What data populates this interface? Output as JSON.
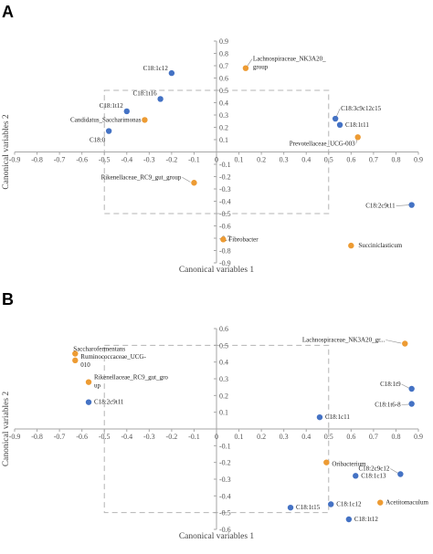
{
  "colors": {
    "blue": "#4472C4",
    "orange": "#ED9B33",
    "axis": "#A6A6A6",
    "box": "#B4B4B4",
    "leader": "#8C8C8C"
  },
  "chart_data": [
    {
      "panel": "A",
      "type": "scatter",
      "xlabel": "Canonical variables 1",
      "ylabel": "Canonical variables 2",
      "xlim": [
        -0.9,
        0.9
      ],
      "ylim": [
        -0.9,
        0.9
      ],
      "xticks": [
        -0.9,
        -0.8,
        -0.7,
        -0.6,
        -0.5,
        -0.4,
        -0.3,
        -0.2,
        -0.1,
        0,
        0.1,
        0.2,
        0.3,
        0.4,
        0.5,
        0.6,
        0.7,
        0.8,
        0.9
      ],
      "yticks": [
        0.9,
        0.8,
        0.7,
        0.6,
        0.5,
        0.4,
        0.3,
        0.2,
        0.1,
        -0.1,
        -0.2,
        -0.3,
        -0.4,
        -0.5,
        -0.6,
        -0.7,
        -0.8,
        -0.9
      ],
      "xtick_labels": [
        "-0.9",
        "-0.8",
        "-0.7",
        "-0.6",
        "-0.5",
        "-0.4",
        "-0.3",
        "-0.2",
        "-0.1",
        "0",
        "0.1",
        "0.2",
        "0.3",
        "0.4",
        "0.5",
        "0.6",
        "0.7",
        "0.8",
        "0.9"
      ],
      "ytick_labels": [
        "0.9",
        "0.8",
        "0.7",
        "0.6",
        "0.5",
        "0.4",
        "0.3",
        "0.2",
        "0.1",
        "-0.1",
        "-0.2",
        "-0.3",
        "-0.4",
        "-0.5",
        "-0.6",
        "-0.7",
        "-0.8",
        "-0.9"
      ],
      "box": {
        "x": [
          -0.5,
          0.5
        ],
        "y": [
          -0.5,
          0.5
        ]
      },
      "points": [
        {
          "label": [
            "C18:1c12"
          ],
          "x": -0.2,
          "y": 0.64,
          "series": "fatty_acid"
        },
        {
          "label": [
            "Lachnospiraceae_NK3A20_",
            "group"
          ],
          "x": 0.13,
          "y": 0.68,
          "series": "bacteria"
        },
        {
          "label": [
            "C18:1t16"
          ],
          "x": -0.25,
          "y": 0.43,
          "series": "fatty_acid"
        },
        {
          "label": [
            "C18:1t12"
          ],
          "x": -0.4,
          "y": 0.33,
          "series": "fatty_acid"
        },
        {
          "label": [
            "Candidatus_Saccharimonas"
          ],
          "x": -0.32,
          "y": 0.26,
          "series": "bacteria"
        },
        {
          "label": [
            "C18:0"
          ],
          "x": -0.48,
          "y": 0.17,
          "series": "fatty_acid"
        },
        {
          "label": [
            "C18:3c9c12c15"
          ],
          "x": 0.53,
          "y": 0.27,
          "series": "fatty_acid"
        },
        {
          "label": [
            "C18:1t11"
          ],
          "x": 0.55,
          "y": 0.22,
          "series": "fatty_acid"
        },
        {
          "label": [
            "Prevotellaceae_UCG-003"
          ],
          "x": 0.63,
          "y": 0.12,
          "series": "bacteria"
        },
        {
          "label": [
            "Rikenellaceae_RC9_gut_group"
          ],
          "x": -0.1,
          "y": -0.25,
          "series": "bacteria"
        },
        {
          "label": [
            "C18:2c9t11"
          ],
          "x": 0.87,
          "y": -0.43,
          "series": "fatty_acid"
        },
        {
          "label": [
            "Fibrobacter"
          ],
          "x": 0.03,
          "y": -0.71,
          "series": "bacteria"
        },
        {
          "label": [
            "Succiniclasticum"
          ],
          "x": 0.6,
          "y": -0.76,
          "series": "bacteria"
        }
      ]
    },
    {
      "panel": "B",
      "type": "scatter",
      "xlabel": "Canonical variables 1",
      "ylabel": "Canonical variables 2",
      "xlim": [
        -0.9,
        0.9
      ],
      "ylim": [
        -0.6,
        0.6
      ],
      "xticks": [
        -0.9,
        -0.8,
        -0.7,
        -0.6,
        -0.5,
        -0.4,
        -0.3,
        -0.2,
        -0.1,
        0,
        0.1,
        0.2,
        0.3,
        0.4,
        0.5,
        0.6,
        0.7,
        0.8,
        0.9
      ],
      "yticks": [
        0.6,
        0.5,
        0.4,
        0.3,
        0.2,
        0.1,
        -0.1,
        -0.2,
        -0.3,
        -0.4,
        -0.5,
        -0.6
      ],
      "xtick_labels": [
        "-0.9",
        "-0.8",
        "-0.7",
        "-0.6",
        "-0.5",
        "-0.4",
        "-0.3",
        "-0.2",
        "-0.1",
        "0",
        "0.1",
        "0.2",
        "0.3",
        "0.4",
        "0.5",
        "0.6",
        "0.7",
        "0.8",
        "0.9"
      ],
      "ytick_labels": [
        "0.6",
        "0.5",
        "0.4",
        "0.3",
        "0.2",
        "0.1",
        "-0.1",
        "-0.2",
        "-0.3",
        "-0.4",
        "-0.5",
        "-0.6"
      ],
      "box": {
        "x": [
          -0.5,
          0.5
        ],
        "y": [
          -0.5,
          0.5
        ]
      },
      "points": [
        {
          "label": [
            "Lachnospiraceae_NK3A20_gr..."
          ],
          "x": 0.84,
          "y": 0.51,
          "series": "bacteria"
        },
        {
          "label": [
            "Saccharofermentans"
          ],
          "x": -0.63,
          "y": 0.45,
          "series": "bacteria"
        },
        {
          "label": [
            "Ruminococcaceae_UCG-",
            "010"
          ],
          "x": -0.63,
          "y": 0.41,
          "series": "bacteria"
        },
        {
          "label": [
            "Rikenellaceae_RC9_gut_gro",
            "up"
          ],
          "x": -0.57,
          "y": 0.28,
          "series": "bacteria"
        },
        {
          "label": [
            "C18:2c9t11"
          ],
          "x": -0.57,
          "y": 0.16,
          "series": "fatty_acid"
        },
        {
          "label": [
            "C18:1t9"
          ],
          "x": 0.87,
          "y": 0.24,
          "series": "fatty_acid"
        },
        {
          "label": [
            "C18:1t6-8"
          ],
          "x": 0.87,
          "y": 0.15,
          "series": "fatty_acid"
        },
        {
          "label": [
            "C18:1c11"
          ],
          "x": 0.46,
          "y": 0.07,
          "series": "fatty_acid"
        },
        {
          "label": [
            "Oribacterium"
          ],
          "x": 0.49,
          "y": -0.2,
          "series": "bacteria"
        },
        {
          "label": [
            "C18:2c9c12"
          ],
          "x": 0.82,
          "y": -0.27,
          "series": "fatty_acid"
        },
        {
          "label": [
            "C18:1c13"
          ],
          "x": 0.62,
          "y": -0.28,
          "series": "fatty_acid"
        },
        {
          "label": [
            "Acetitomaculum"
          ],
          "x": 0.73,
          "y": -0.44,
          "series": "bacteria"
        },
        {
          "label": [
            "C18:1c12"
          ],
          "x": 0.51,
          "y": -0.45,
          "series": "fatty_acid"
        },
        {
          "label": [
            "C18:1t15"
          ],
          "x": 0.33,
          "y": -0.47,
          "series": "fatty_acid"
        },
        {
          "label": [
            "C18:1t12"
          ],
          "x": 0.59,
          "y": -0.54,
          "series": "fatty_acid"
        }
      ]
    }
  ]
}
